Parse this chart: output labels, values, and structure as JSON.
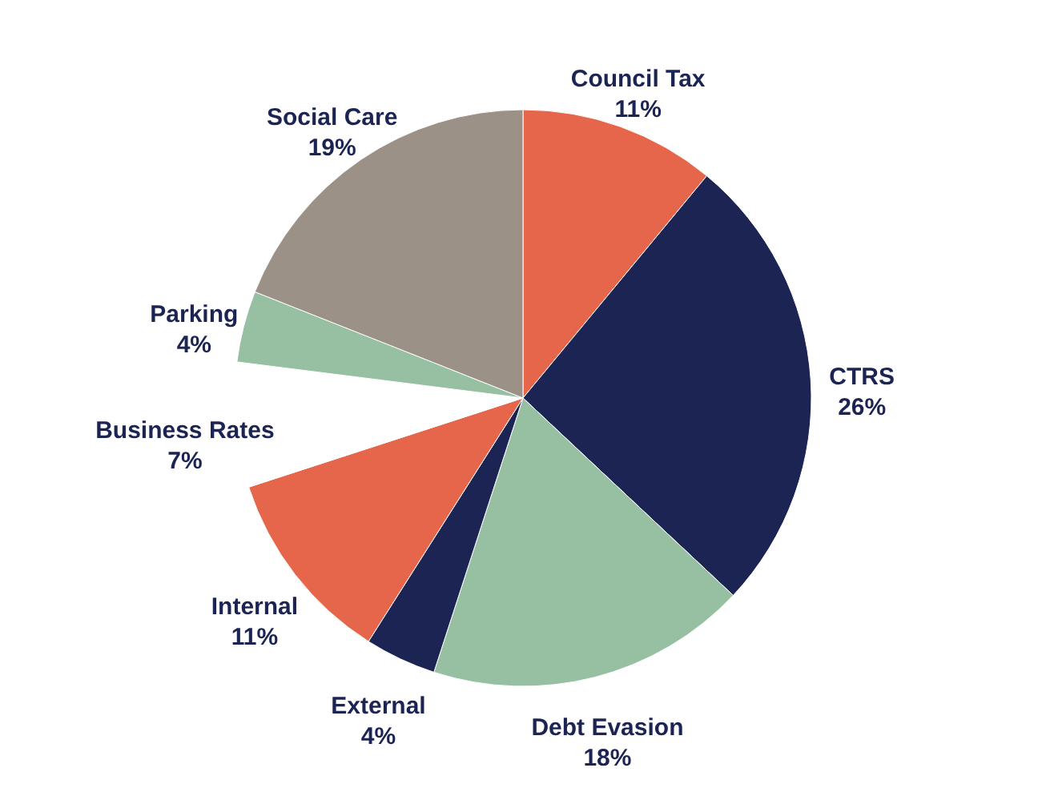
{
  "chart_data": {
    "type": "pie",
    "categories": [
      "Council Tax",
      "CTRS",
      "Debt Evasion",
      "External",
      "Internal",
      "Business Rates",
      "Parking",
      "Social Care"
    ],
    "values": [
      11,
      26,
      18,
      4,
      11,
      7,
      4,
      19
    ],
    "value_labels": [
      "11%",
      "26%",
      "18%",
      "4%",
      "11%",
      "7%",
      "4%",
      "19%"
    ],
    "colors": [
      "#e5664a",
      "#1b2452",
      "#97c0a3",
      "#1b2452",
      "#e5664a",
      "#ffffff",
      "#97c0a3",
      "#9b9187"
    ]
  }
}
